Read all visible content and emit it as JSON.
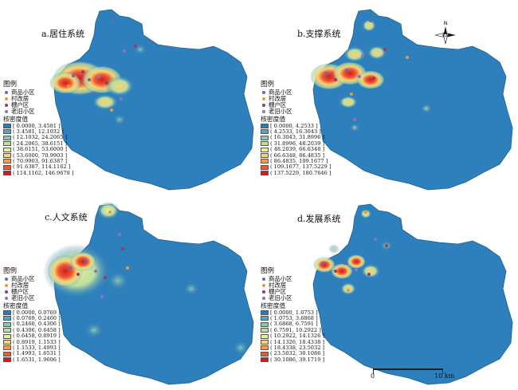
{
  "panels": [
    {
      "id": "a",
      "title": "a.居住系统",
      "density_label": "核密度值",
      "classes": [
        "[ 0.0000, 3.4581 ]",
        "( 3.4581, 12.1032 ]",
        "( 12.1032, 24.2065 ]",
        "( 24.2065, 38.6151 ]",
        "( 38.6151, 53.6000 ]",
        "( 53.6000, 70.9903 ]",
        "( 70.9903, 91.6387 ]",
        "( 91.6387, 114.1162 ]",
        "( 114.1162, 146.9678 ]"
      ]
    },
    {
      "id": "b",
      "title": "b.支撑系统",
      "density_label": "核密度值",
      "classes": [
        "[ 0.0000, 4.2533 ]",
        "( 4.2533, 16.3043 ]",
        "( 16.3043, 31.8996 ]",
        "( 31.8996, 48.2039 ]",
        "( 48.2039, 66.6348 ]",
        "( 66.6348, 86.4835 ]",
        "( 86.4835, 109.1677 ]",
        "( 109.1677, 137.5229 ]",
        "( 137.5229, 180.7646 ]"
      ]
    },
    {
      "id": "c",
      "title": "c.人文系统",
      "density_label": "核密度值",
      "classes": [
        "[ 0.0000, 0.0769 ]",
        "( 0.0769, 0.2460 ]",
        "( 0.2460, 0.4306 ]",
        "( 0.4306, 0.6458 ]",
        "( 0.6458, 0.8919 ]",
        "( 0.8919, 1.1533 ]",
        "( 1.1533, 1.4993 ]",
        "( 1.4993, 1.6531 ]",
        "( 1.6531, 1.9606 ]"
      ]
    },
    {
      "id": "d",
      "title": "d.发展系统",
      "density_label": "核密度值",
      "classes": [
        "[ 0.0000, 1.0753 ]",
        "( 1.0753, 3.6868 ]",
        "( 3.6868, 6.7591 ]",
        "( 6.7591, 10.2922 ]",
        "( 10.2922, 14.1326 ]",
        "( 14.1326, 18.4338 ]",
        "( 18.4338, 23.5032 ]",
        "( 23.5032, 30.1086 ]",
        "( 30.1086, 39.1719 ]"
      ]
    }
  ],
  "legend": {
    "heading": "图例",
    "points": [
      {
        "label": "商品小区",
        "color": "#5a6fb8"
      },
      {
        "label": "村改居",
        "color": "#e89a3c"
      },
      {
        "label": "棚户区",
        "color": "#9a3b63"
      },
      {
        "label": "老旧小区",
        "color": "#8a78b8"
      }
    ]
  },
  "ramp": [
    "#2b7bb9",
    "#5aa3c4",
    "#8ec5b1",
    "#bcdca0",
    "#e8ef9b",
    "#fbd273",
    "#f79c4d",
    "#ea5a35",
    "#d7191c"
  ],
  "base_color": "#2e80bd",
  "compass": {
    "north": "N"
  },
  "scale": {
    "start": "0",
    "end": "10 km"
  }
}
